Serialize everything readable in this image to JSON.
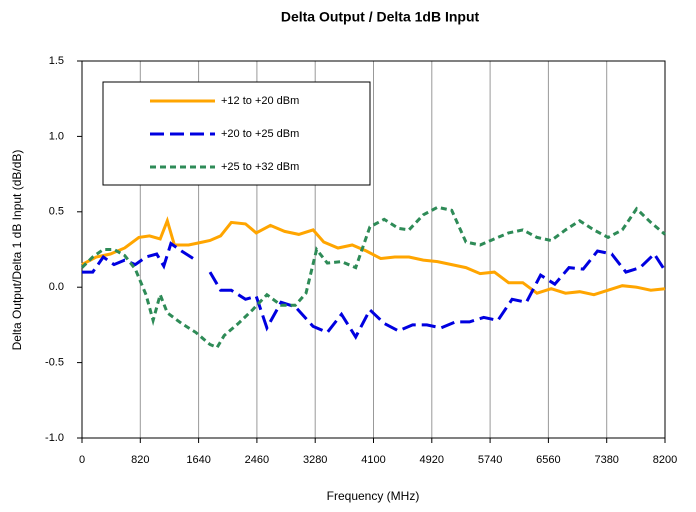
{
  "chart_data": {
    "type": "line",
    "title": "Delta Output / Delta 1dB Input",
    "x_label": "Frequency (MHz)",
    "y_label": "Delta Output/Delta 1 dB Input (dB/dB)",
    "xlim": [
      0,
      8200
    ],
    "xticks": [
      0,
      820,
      1640,
      2460,
      3280,
      4100,
      4920,
      5740,
      6560,
      7380,
      8200
    ],
    "ylim": [
      -1,
      1.5
    ],
    "yticks": [
      {
        "value": -1,
        "label": "-1.0"
      },
      -0.5,
      {
        "value": 0,
        "label": "0.0"
      },
      0.5,
      {
        "value": 1,
        "label": "1.0"
      },
      1.5
    ],
    "grid": "vertical",
    "legend": "upper left",
    "series": [
      {
        "name": "+12 to +20 dBm",
        "color": "#ffa500",
        "style": "solid",
        "x": [
          0,
          200,
          400,
          600,
          800,
          950,
          1100,
          1200,
          1300,
          1500,
          1700,
          1800,
          1950,
          2100,
          2300,
          2450,
          2650,
          2850,
          3050,
          3250,
          3400,
          3600,
          3800,
          4000,
          4200,
          4400,
          4600,
          4800,
          5000,
          5200,
          5400,
          5600,
          5800,
          6000,
          6200,
          6400,
          6600,
          6800,
          7000,
          7200,
          7400,
          7600,
          7800,
          8000,
          8200
        ],
        "values": [
          0.15,
          0.2,
          0.22,
          0.26,
          0.33,
          0.34,
          0.32,
          0.44,
          0.28,
          0.28,
          0.3,
          0.31,
          0.34,
          0.43,
          0.42,
          0.36,
          0.41,
          0.37,
          0.35,
          0.38,
          0.3,
          0.26,
          0.28,
          0.24,
          0.19,
          0.2,
          0.2,
          0.18,
          0.17,
          0.15,
          0.13,
          0.09,
          0.1,
          0.03,
          0.03,
          -0.04,
          -0.01,
          -0.04,
          -0.03,
          -0.05,
          -0.02,
          0.01,
          0.0,
          -0.02,
          -0.01
        ]
      },
      {
        "name": "+20 to +25 dBm",
        "color": "#0000e0",
        "style": "dashed",
        "x": [
          0,
          150,
          300,
          450,
          600,
          750,
          900,
          1050,
          1150,
          1250,
          1400,
          1600,
          1700,
          1800,
          1950,
          2100,
          2300,
          2450,
          2600,
          2800,
          3000,
          3250,
          3450,
          3650,
          3850,
          4050,
          4250,
          4450,
          4650,
          4850,
          5050,
          5250,
          5450,
          5650,
          5850,
          6050,
          6250,
          6450,
          6650,
          6850,
          7050,
          7250,
          7450,
          7650,
          7850,
          8050,
          8200
        ],
        "values": [
          0.1,
          0.1,
          0.2,
          0.15,
          0.18,
          0.15,
          0.2,
          0.22,
          0.14,
          0.29,
          0.24,
          0.18,
          null,
          0.1,
          -0.02,
          -0.02,
          -0.08,
          -0.06,
          -0.27,
          -0.1,
          -0.13,
          -0.26,
          -0.3,
          -0.18,
          -0.33,
          -0.15,
          -0.24,
          -0.29,
          -0.25,
          -0.25,
          -0.27,
          -0.23,
          -0.23,
          -0.2,
          -0.22,
          -0.08,
          -0.1,
          0.08,
          0.02,
          0.13,
          0.12,
          0.24,
          0.22,
          0.1,
          0.13,
          0.22,
          0.11
        ]
      },
      {
        "name": "+25 to +32 dBm",
        "color": "#2e8b57",
        "style": "dotted",
        "x": [
          0,
          150,
          300,
          450,
          600,
          750,
          900,
          1000,
          1100,
          1200,
          1400,
          1600,
          1800,
          1900,
          2000,
          2200,
          2400,
          2600,
          2800,
          3000,
          3150,
          3300,
          3450,
          3650,
          3850,
          4050,
          4250,
          4450,
          4600,
          4800,
          5000,
          5200,
          5400,
          5600,
          5800,
          6000,
          6200,
          6400,
          6600,
          6800,
          7000,
          7200,
          7400,
          7600,
          7800,
          8000,
          8200
        ],
        "values": [
          0.13,
          0.2,
          0.25,
          0.25,
          0.21,
          0.12,
          -0.05,
          -0.22,
          -0.05,
          -0.17,
          -0.24,
          -0.3,
          -0.38,
          -0.4,
          -0.32,
          -0.24,
          -0.15,
          -0.05,
          -0.12,
          -0.12,
          -0.04,
          0.25,
          0.16,
          0.17,
          0.13,
          0.4,
          0.45,
          0.39,
          0.38,
          0.48,
          0.53,
          0.51,
          0.3,
          0.28,
          0.32,
          0.36,
          0.38,
          0.33,
          0.31,
          0.38,
          0.44,
          0.38,
          0.33,
          0.38,
          0.52,
          0.43,
          0.35
        ]
      }
    ]
  }
}
